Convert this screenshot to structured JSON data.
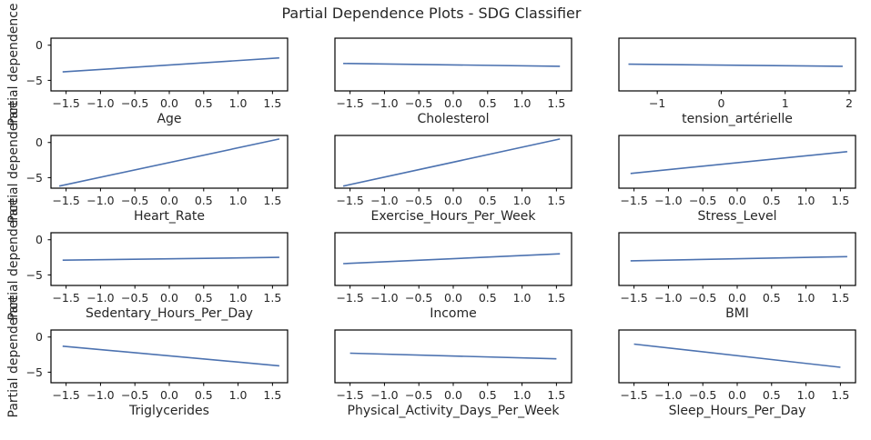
{
  "title": "Partial Dependence Plots - SDG Classifier",
  "ylabel": "Partial dependence",
  "line_color": "#4c72b0",
  "chart_data": [
    {
      "type": "line",
      "xlabel": "Age",
      "xlim": [
        -1.72,
        1.72
      ],
      "xticks": [
        -1.5,
        -1.0,
        -0.5,
        0.0,
        0.5,
        1.0,
        1.5
      ],
      "xtick_labels": [
        "−1.5",
        "−1.0",
        "−0.5",
        "0.0",
        "0.5",
        "1.0",
        "1.5"
      ],
      "ylim": [
        -6.5,
        1
      ],
      "yticks": [
        0,
        -5
      ],
      "ytick_labels": [
        "0",
        "−5"
      ],
      "show_ylabel": true,
      "x": [
        -1.55,
        1.6
      ],
      "y": [
        -3.8,
        -1.8
      ]
    },
    {
      "type": "line",
      "xlabel": "Cholesterol",
      "xlim": [
        -1.72,
        1.72
      ],
      "xticks": [
        -1.5,
        -1.0,
        -0.5,
        0.0,
        0.5,
        1.0,
        1.5
      ],
      "xtick_labels": [
        "−1.5",
        "−1.0",
        "−0.5",
        "0.0",
        "0.5",
        "1.0",
        "1.5"
      ],
      "ylim": [
        -6.5,
        1
      ],
      "yticks": [],
      "ytick_labels": [],
      "show_ylabel": false,
      "x": [
        -1.6,
        1.55
      ],
      "y": [
        -2.6,
        -3.0
      ]
    },
    {
      "type": "line",
      "xlabel": "tension_artérielle",
      "xlim": [
        -1.6,
        2.1
      ],
      "xticks": [
        -1,
        0,
        1,
        2
      ],
      "xtick_labels": [
        "−1",
        "0",
        "1",
        "2"
      ],
      "ylim": [
        -6.5,
        1
      ],
      "yticks": [],
      "ytick_labels": [],
      "show_ylabel": false,
      "x": [
        -1.45,
        1.9
      ],
      "y": [
        -2.7,
        -3.0
      ]
    },
    {
      "type": "line",
      "xlabel": "Heart_Rate",
      "xlim": [
        -1.72,
        1.72
      ],
      "xticks": [
        -1.5,
        -1.0,
        -0.5,
        0.0,
        0.5,
        1.0,
        1.5
      ],
      "xtick_labels": [
        "−1.5",
        "−1.0",
        "−0.5",
        "0.0",
        "0.5",
        "1.0",
        "1.5"
      ],
      "ylim": [
        -6.5,
        1
      ],
      "yticks": [
        0,
        -5
      ],
      "ytick_labels": [
        "0",
        "−5"
      ],
      "show_ylabel": true,
      "x": [
        -1.6,
        1.6
      ],
      "y": [
        -6.2,
        0.5
      ]
    },
    {
      "type": "line",
      "xlabel": "Exercise_Hours_Per_Week",
      "xlim": [
        -1.72,
        1.72
      ],
      "xticks": [
        -1.5,
        -1.0,
        -0.5,
        0.0,
        0.5,
        1.0,
        1.5
      ],
      "xtick_labels": [
        "−1.5",
        "−1.0",
        "−0.5",
        "0.0",
        "0.5",
        "1.0",
        "1.5"
      ],
      "ylim": [
        -6.5,
        1
      ],
      "yticks": [],
      "ytick_labels": [],
      "show_ylabel": false,
      "x": [
        -1.6,
        1.55
      ],
      "y": [
        -6.2,
        0.5
      ]
    },
    {
      "type": "line",
      "xlabel": "Stress_Level",
      "xlim": [
        -1.72,
        1.72
      ],
      "xticks": [
        -1.5,
        -1.0,
        -0.5,
        0.0,
        0.5,
        1.0,
        1.5
      ],
      "xtick_labels": [
        "−1.5",
        "−1.0",
        "−0.5",
        "0.0",
        "0.5",
        "1.0",
        "1.5"
      ],
      "ylim": [
        -6.5,
        1
      ],
      "yticks": [],
      "ytick_labels": [],
      "show_ylabel": false,
      "x": [
        -1.55,
        1.6
      ],
      "y": [
        -4.4,
        -1.3
      ]
    },
    {
      "type": "line",
      "xlabel": "Sedentary_Hours_Per_Day",
      "xlim": [
        -1.72,
        1.72
      ],
      "xticks": [
        -1.5,
        -1.0,
        -0.5,
        0.0,
        0.5,
        1.0,
        1.5
      ],
      "xtick_labels": [
        "−1.5",
        "−1.0",
        "−0.5",
        "0.0",
        "0.5",
        "1.0",
        "1.5"
      ],
      "ylim": [
        -6.5,
        1
      ],
      "yticks": [
        0,
        -5
      ],
      "ytick_labels": [
        "0",
        "−5"
      ],
      "show_ylabel": true,
      "x": [
        -1.55,
        1.6
      ],
      "y": [
        -2.9,
        -2.5
      ]
    },
    {
      "type": "line",
      "xlabel": "Income",
      "xlim": [
        -1.72,
        1.72
      ],
      "xticks": [
        -1.5,
        -1.0,
        -0.5,
        0.0,
        0.5,
        1.0,
        1.5
      ],
      "xtick_labels": [
        "−1.5",
        "−1.0",
        "−0.5",
        "0.0",
        "0.5",
        "1.0",
        "1.5"
      ],
      "ylim": [
        -6.5,
        1
      ],
      "yticks": [],
      "ytick_labels": [],
      "show_ylabel": false,
      "x": [
        -1.6,
        1.55
      ],
      "y": [
        -3.4,
        -2.0
      ]
    },
    {
      "type": "line",
      "xlabel": "BMI",
      "xlim": [
        -1.72,
        1.72
      ],
      "xticks": [
        -1.5,
        -1.0,
        -0.5,
        0.0,
        0.5,
        1.0,
        1.5
      ],
      "xtick_labels": [
        "−1.5",
        "−1.0",
        "−0.5",
        "0.0",
        "0.5",
        "1.0",
        "1.5"
      ],
      "ylim": [
        -6.5,
        1
      ],
      "yticks": [],
      "ytick_labels": [],
      "show_ylabel": false,
      "x": [
        -1.55,
        1.6
      ],
      "y": [
        -3.0,
        -2.4
      ]
    },
    {
      "type": "line",
      "xlabel": "Triglycerides",
      "xlim": [
        -1.72,
        1.72
      ],
      "xticks": [
        -1.5,
        -1.0,
        -0.5,
        0.0,
        0.5,
        1.0,
        1.5
      ],
      "xtick_labels": [
        "−1.5",
        "−1.0",
        "−0.5",
        "0.0",
        "0.5",
        "1.0",
        "1.5"
      ],
      "ylim": [
        -6.5,
        1
      ],
      "yticks": [
        0,
        -5
      ],
      "ytick_labels": [
        "0",
        "−5"
      ],
      "show_ylabel": true,
      "x": [
        -1.55,
        1.6
      ],
      "y": [
        -1.3,
        -4.1
      ]
    },
    {
      "type": "line",
      "xlabel": "Physical_Activity_Days_Per_Week",
      "xlim": [
        -1.72,
        1.72
      ],
      "xticks": [
        -1.5,
        -1.0,
        -0.5,
        0.0,
        0.5,
        1.0,
        1.5
      ],
      "xtick_labels": [
        "−1.5",
        "−1.0",
        "−0.5",
        "0.0",
        "0.5",
        "1.0",
        "1.5"
      ],
      "ylim": [
        -6.5,
        1
      ],
      "yticks": [],
      "ytick_labels": [],
      "show_ylabel": false,
      "x": [
        -1.5,
        1.5
      ],
      "y": [
        -2.3,
        -3.1
      ]
    },
    {
      "type": "line",
      "xlabel": "Sleep_Hours_Per_Day",
      "xlim": [
        -1.72,
        1.72
      ],
      "xticks": [
        -1.5,
        -1.0,
        -0.5,
        0.0,
        0.5,
        1.0,
        1.5
      ],
      "xtick_labels": [
        "−1.5",
        "−1.0",
        "−0.5",
        "0.0",
        "0.5",
        "1.0",
        "1.5"
      ],
      "ylim": [
        -6.5,
        1
      ],
      "yticks": [],
      "ytick_labels": [],
      "show_ylabel": false,
      "x": [
        -1.5,
        1.5
      ],
      "y": [
        -1.0,
        -4.3
      ]
    }
  ]
}
